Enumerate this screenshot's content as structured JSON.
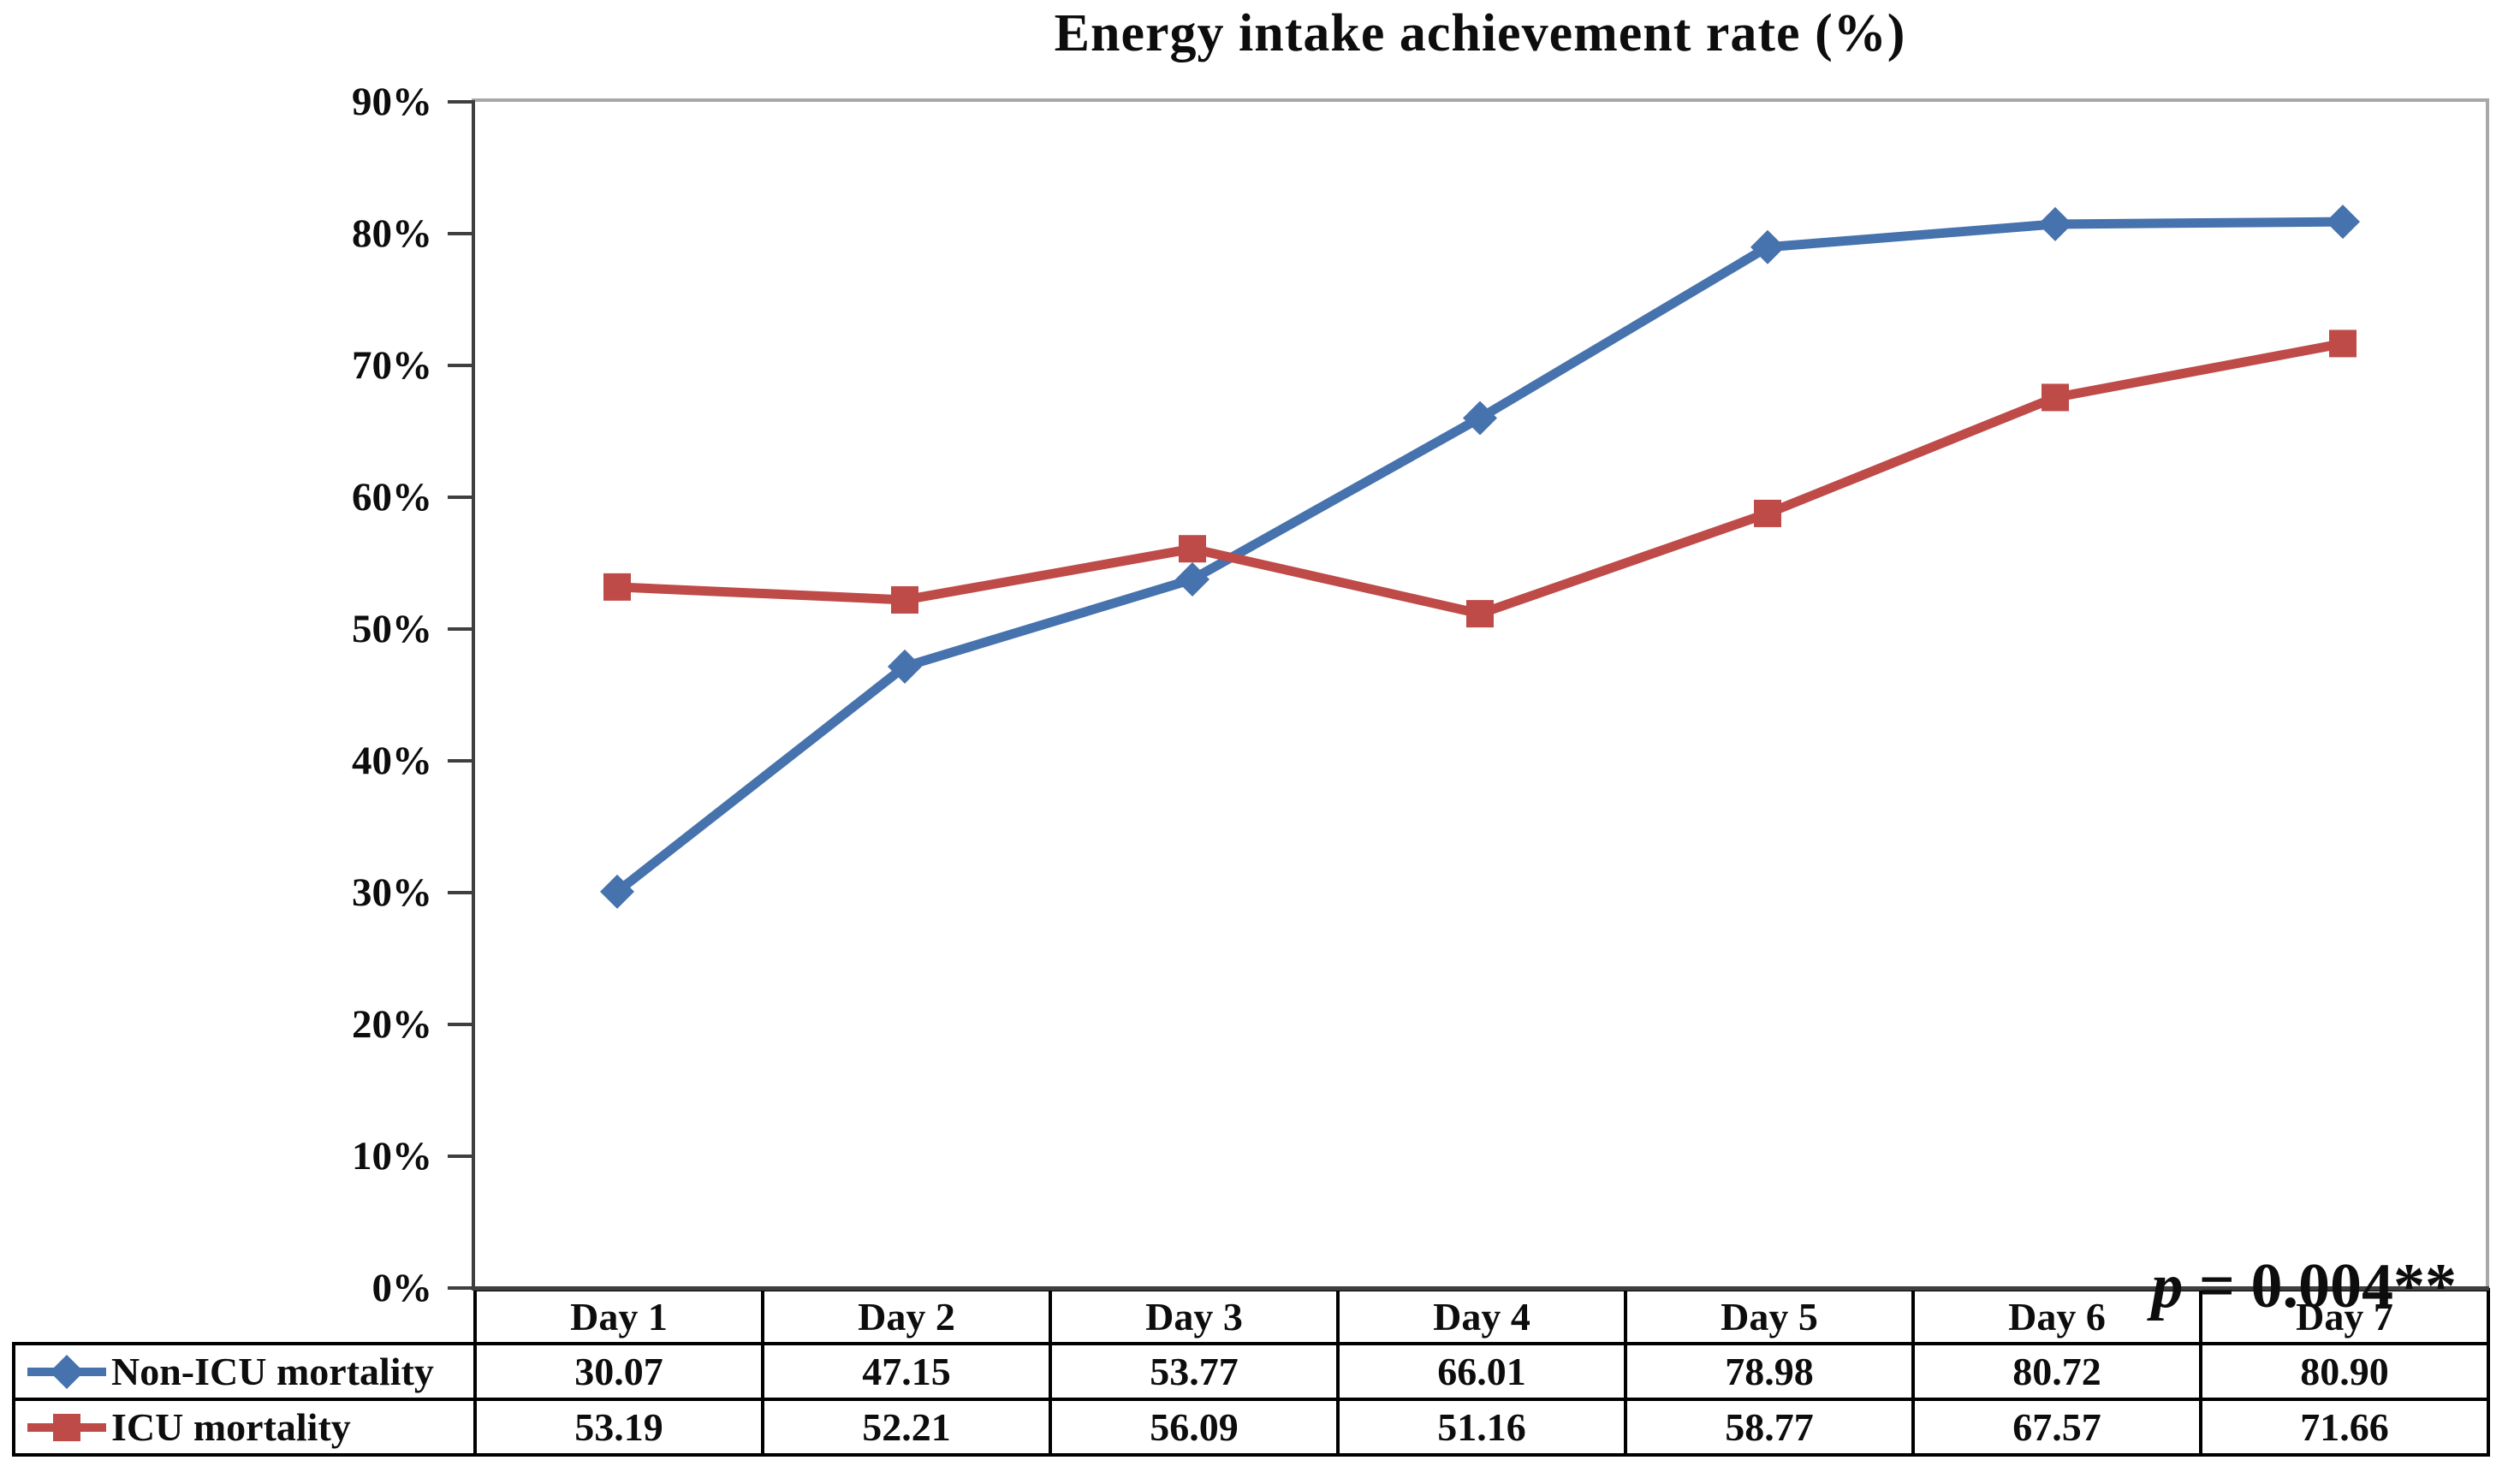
{
  "title": "Energy intake achievement rate (%)",
  "annotation": {
    "p_symbol": "p",
    "p_rest": " = 0.004**"
  },
  "colors": {
    "series_blue": "#4672AD",
    "series_red": "#BE4B48",
    "axis": "#3f3f3f",
    "plot_border": "#a8a8a8",
    "table_border": "#000000",
    "text": "#0d0d0d"
  },
  "chart_data": {
    "type": "line",
    "title": "Energy intake achievement rate (%)",
    "categories": [
      "Day 1",
      "Day 2",
      "Day 3",
      "Day 4",
      "Day 5",
      "Day 6",
      "Day 7"
    ],
    "series": [
      {
        "name": "Non-ICU mortality",
        "marker": "diamond",
        "color": "#4672AD",
        "values": [
          30.07,
          47.15,
          53.77,
          66.01,
          78.98,
          80.72,
          80.9
        ],
        "value_labels": [
          "30.07",
          "47.15",
          "53.77",
          "66.01",
          "78.98",
          "80.72",
          "80.90"
        ]
      },
      {
        "name": "ICU mortality",
        "marker": "square",
        "color": "#BE4B48",
        "values": [
          53.19,
          52.21,
          56.09,
          51.16,
          58.77,
          67.57,
          71.66
        ],
        "value_labels": [
          "53.19",
          "52.21",
          "56.09",
          "51.16",
          "58.77",
          "67.57",
          "71.66"
        ]
      }
    ],
    "ylim": [
      0,
      90
    ],
    "ytick_step": 10,
    "ytick_labels": [
      "0%",
      "10%",
      "20%",
      "30%",
      "40%",
      "50%",
      "60%",
      "70%",
      "80%",
      "90%"
    ],
    "grid": false,
    "legend_position": "table-left",
    "annotation": "p = 0.004**",
    "xlabel": "",
    "ylabel": ""
  }
}
